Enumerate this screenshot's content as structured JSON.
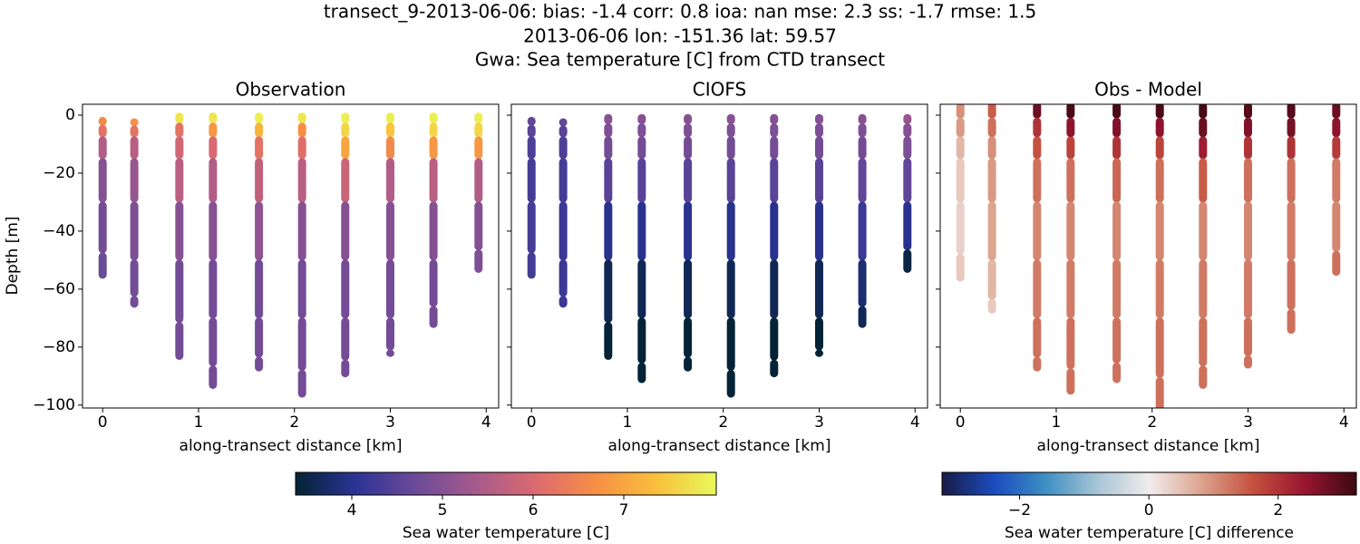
{
  "chart_data": {
    "type": "scatter",
    "title": [
      "transect_9-2013-06-06: bias: -1.4  corr: 0.8  ioa: nan  mse: 2.3  ss: -1.7  rmse: 1.5",
      "2013-06-06 lon: -151.36 lat: 59.57",
      "Gwa: Sea temperature [C] from CTD transect"
    ],
    "xlabel": "along-transect distance [km]",
    "ylabel": "Depth [m]",
    "xlim": [
      -0.21,
      4.13
    ],
    "ylim": [
      -101,
      3.75
    ],
    "xticks": [
      0,
      1,
      2,
      3,
      4
    ],
    "yticks": [
      0,
      {
        "value": -20,
        "label": "−20"
      },
      {
        "value": -40,
        "label": "−40"
      },
      {
        "value": -60,
        "label": "−60"
      },
      {
        "value": -80,
        "label": "−80"
      },
      {
        "value": -100,
        "label": "−100"
      }
    ],
    "colorbars": [
      {
        "label": "Sea water temperature [C]",
        "clim": [
          3.38,
          8.02
        ],
        "ticks": [
          4,
          5,
          6,
          7
        ],
        "colors": [
          "#042333",
          "#2c3395",
          "#6c4a98",
          "#a65a8c",
          "#dc6a6f",
          "#f68f45",
          "#f9bf3b",
          "#e8fa5b"
        ]
      },
      {
        "label": "Sea water temperature [C] difference",
        "clim": [
          -3.2,
          3.21
        ],
        "ticks": [
          {
            "value": -2,
            "label": "−2"
          },
          0,
          2
        ],
        "colors": [
          "#181c43",
          "#1a4bbf",
          "#3d8fc3",
          "#a7c5d6",
          "#f1ecec",
          "#dca48e",
          "#c5513d",
          "#981530",
          "#3c0912"
        ]
      }
    ],
    "panels": [
      {
        "title": "Observation",
        "colorbar": 0,
        "casts": [
          {
            "x": 0,
            "depth": [
              -2,
              -5,
              -10,
              -20,
              -40,
              -55
            ],
            "values": [
              6.6,
              6.2,
              5.5,
              5.0,
              4.8,
              4.7
            ]
          },
          {
            "x": 0.33,
            "depth": [
              -2.5,
              -5,
              -10,
              -20,
              -40,
              -60,
              -65
            ],
            "values": [
              6.7,
              6.2,
              5.6,
              5.2,
              4.9,
              4.8,
              4.8
            ]
          },
          {
            "x": 0.8,
            "depth": [
              -0.5,
              -5,
              -10,
              -20,
              -40,
              -60,
              -83
            ],
            "values": [
              7.8,
              6.2,
              5.9,
              5.6,
              5.0,
              4.8,
              4.8
            ]
          },
          {
            "x": 1.15,
            "depth": [
              -0.5,
              -5,
              -10,
              -20,
              -40,
              -60,
              -80,
              -93
            ],
            "values": [
              7.8,
              6.8,
              6.0,
              5.5,
              5.0,
              4.8,
              4.8,
              4.8
            ]
          },
          {
            "x": 1.63,
            "depth": [
              -0.5,
              -5,
              -10,
              -20,
              -40,
              -60,
              -80,
              -87
            ],
            "values": [
              7.9,
              7.2,
              6.2,
              5.7,
              5.1,
              4.8,
              4.8,
              4.8
            ]
          },
          {
            "x": 2.08,
            "depth": [
              -0.5,
              -5,
              -10,
              -20,
              -40,
              -60,
              -80,
              -96
            ],
            "values": [
              7.8,
              6.7,
              6.1,
              5.6,
              5.0,
              4.8,
              4.8,
              4.8
            ]
          },
          {
            "x": 2.53,
            "depth": [
              -0.5,
              -5,
              -10,
              -20,
              -40,
              -60,
              -80,
              -89
            ],
            "values": [
              7.9,
              7.6,
              7.0,
              5.8,
              5.0,
              4.8,
              4.8,
              4.8
            ]
          },
          {
            "x": 3.0,
            "depth": [
              -0.5,
              -5,
              -10,
              -20,
              -40,
              -60,
              -80,
              -82
            ],
            "values": [
              7.9,
              7.4,
              6.6,
              5.5,
              5.0,
              4.8,
              4.8,
              4.8
            ]
          },
          {
            "x": 3.45,
            "depth": [
              -0.5,
              -5,
              -10,
              -20,
              -40,
              -60,
              -72
            ],
            "values": [
              7.9,
              7.6,
              6.8,
              5.6,
              5.0,
              4.8,
              4.8
            ]
          },
          {
            "x": 3.92,
            "depth": [
              -0.5,
              -5,
              -10,
              -20,
              -40,
              -53
            ],
            "values": [
              7.9,
              7.6,
              6.8,
              5.5,
              5.0,
              4.9
            ]
          }
        ]
      },
      {
        "title": "CIOFS",
        "colorbar": 0,
        "casts": [
          {
            "x": 0,
            "depth": [
              -2,
              -5,
              -10,
              -20,
              -40,
              -55
            ],
            "values": [
              4.6,
              4.5,
              4.4,
              4.3,
              4.3,
              4.3
            ]
          },
          {
            "x": 0.33,
            "depth": [
              -2.5,
              -5,
              -10,
              -20,
              -40,
              -60,
              -65
            ],
            "values": [
              4.6,
              4.5,
              4.4,
              4.3,
              4.2,
              4.2,
              4.2
            ]
          },
          {
            "x": 0.8,
            "depth": [
              -1,
              -5,
              -10,
              -20,
              -40,
              -60,
              -83
            ],
            "values": [
              5.0,
              4.9,
              4.8,
              4.5,
              4.0,
              3.6,
              3.4
            ]
          },
          {
            "x": 1.15,
            "depth": [
              -1,
              -5,
              -10,
              -20,
              -40,
              -60,
              -80,
              -91
            ],
            "values": [
              5.0,
              4.9,
              4.8,
              4.5,
              4.0,
              3.6,
              3.4,
              3.4
            ]
          },
          {
            "x": 1.63,
            "depth": [
              -1,
              -5,
              -10,
              -20,
              -40,
              -60,
              -80,
              -87
            ],
            "values": [
              5.0,
              4.9,
              4.8,
              4.5,
              4.0,
              3.6,
              3.4,
              3.4
            ]
          },
          {
            "x": 2.08,
            "depth": [
              -1,
              -5,
              -10,
              -20,
              -40,
              -60,
              -80,
              -96
            ],
            "values": [
              5.0,
              4.9,
              4.8,
              4.5,
              4.0,
              3.6,
              3.4,
              3.4
            ]
          },
          {
            "x": 2.53,
            "depth": [
              -1,
              -5,
              -10,
              -20,
              -40,
              -60,
              -80,
              -89
            ],
            "values": [
              5.0,
              4.9,
              4.8,
              4.5,
              4.0,
              3.6,
              3.4,
              3.4
            ]
          },
          {
            "x": 3.0,
            "depth": [
              -1,
              -5,
              -10,
              -20,
              -40,
              -60,
              -80,
              -82
            ],
            "values": [
              5.0,
              4.9,
              4.8,
              4.5,
              4.0,
              3.6,
              3.4,
              3.4
            ]
          },
          {
            "x": 3.45,
            "depth": [
              -1,
              -5,
              -10,
              -20,
              -40,
              -60,
              -72
            ],
            "values": [
              5.0,
              4.9,
              4.8,
              4.6,
              4.2,
              3.8,
              3.6
            ]
          },
          {
            "x": 3.92,
            "depth": [
              -1,
              -5,
              -10,
              -20,
              -40,
              -53
            ],
            "values": [
              5.2,
              5.0,
              4.9,
              4.6,
              4.0,
              3.5
            ]
          }
        ]
      },
      {
        "title": "Obs - Model",
        "colorbar": 1,
        "casts": [
          {
            "x": 0,
            "depth": [
              3,
              -5,
              -10,
              -20,
              -40,
              -56
            ],
            "values": [
              1.0,
              0.9,
              0.6,
              0.4,
              0.3,
              0.4
            ]
          },
          {
            "x": 0.33,
            "depth": [
              3,
              -5,
              -10,
              -20,
              -40,
              -60,
              -67
            ],
            "values": [
              1.5,
              1.3,
              1.0,
              0.9,
              0.8,
              0.6,
              0.4
            ]
          },
          {
            "x": 0.8,
            "depth": [
              3,
              -5,
              -10,
              -20,
              -40,
              -60,
              -80,
              -87
            ],
            "values": [
              2.8,
              2.0,
              1.6,
              1.3,
              1.1,
              1.2,
              1.3,
              1.3
            ]
          },
          {
            "x": 1.15,
            "depth": [
              3,
              -5,
              -10,
              -20,
              -40,
              -60,
              -80,
              -95
            ],
            "values": [
              3.1,
              2.5,
              1.8,
              1.3,
              1.1,
              1.2,
              1.3,
              1.3
            ]
          },
          {
            "x": 1.63,
            "depth": [
              3,
              -5,
              -10,
              -20,
              -40,
              -60,
              -80,
              -91
            ],
            "values": [
              3.1,
              2.6,
              2.0,
              1.4,
              1.1,
              1.2,
              1.3,
              1.3
            ]
          },
          {
            "x": 2.08,
            "depth": [
              3,
              -5,
              -10,
              -20,
              -40,
              -60,
              -80,
              -101
            ],
            "values": [
              3.1,
              2.5,
              1.8,
              1.3,
              1.1,
              1.2,
              1.3,
              1.3
            ]
          },
          {
            "x": 2.53,
            "depth": [
              3,
              -5,
              -10,
              -20,
              -40,
              -60,
              -80,
              -93
            ],
            "values": [
              3.1,
              2.8,
              2.3,
              1.5,
              1.1,
              1.2,
              1.3,
              1.3
            ]
          },
          {
            "x": 3.0,
            "depth": [
              3,
              -5,
              -10,
              -20,
              -40,
              -60,
              -80,
              -86
            ],
            "values": [
              3.0,
              2.6,
              2.0,
              1.3,
              1.1,
              1.2,
              1.3,
              1.3
            ]
          },
          {
            "x": 3.45,
            "depth": [
              3,
              -5,
              -10,
              -20,
              -40,
              -60,
              -74
            ],
            "values": [
              3.0,
              2.7,
              2.0,
              1.3,
              1.2,
              1.3,
              1.3
            ]
          },
          {
            "x": 3.92,
            "depth": [
              3,
              -5,
              -10,
              -20,
              -40,
              -54
            ],
            "values": [
              2.8,
              2.5,
              1.9,
              1.2,
              1.1,
              1.3
            ]
          }
        ]
      }
    ]
  }
}
